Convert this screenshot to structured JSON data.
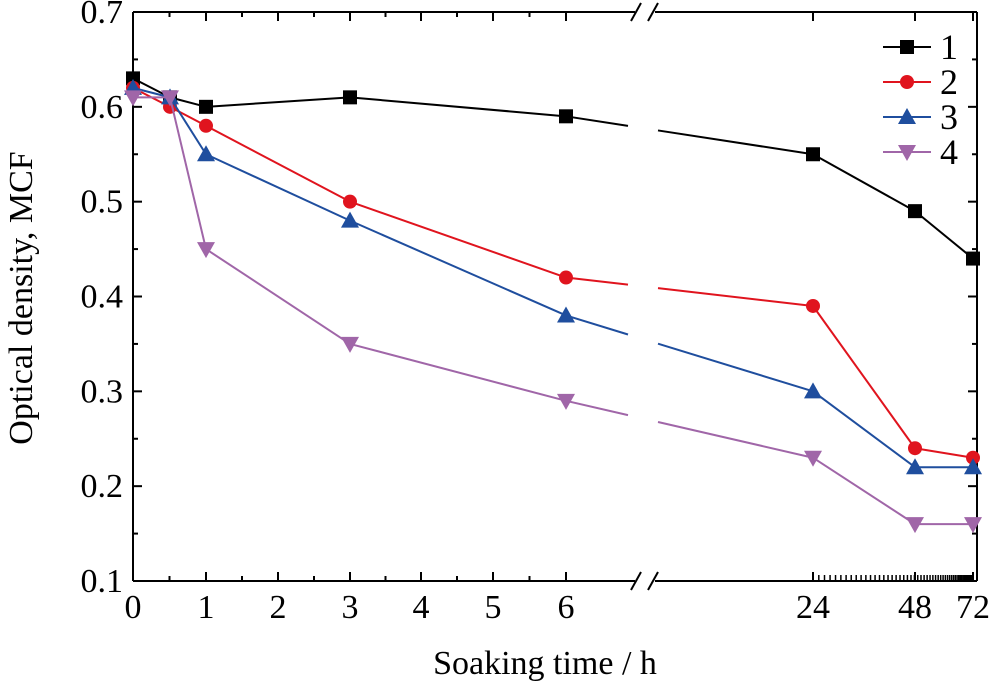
{
  "chart_data": {
    "type": "line",
    "xlabel": "Soaking time / h",
    "ylabel": "Optical density, MCF",
    "ylim": [
      0.1,
      0.7
    ],
    "x_axis_break": "between 6 and 24",
    "legend_position": "top-right",
    "grid": false,
    "y_ticks": [
      "0.1",
      "0.2",
      "0.3",
      "0.4",
      "0.5",
      "0.6",
      "0.7"
    ],
    "x_ticks": [
      "0",
      "1",
      "2",
      "3",
      "4",
      "5",
      "6",
      "24",
      "48",
      "72"
    ],
    "x": [
      0,
      0.5,
      1,
      3,
      6,
      24,
      48,
      72
    ],
    "series": [
      {
        "name": "1",
        "color": "#000000",
        "marker": "square",
        "values": [
          0.63,
          0.61,
          0.6,
          0.61,
          0.59,
          0.55,
          0.49,
          0.44
        ]
      },
      {
        "name": "2",
        "color": "#e0141e",
        "marker": "circle",
        "values": [
          0.62,
          0.6,
          0.58,
          0.5,
          0.42,
          0.39,
          0.24,
          0.23
        ]
      },
      {
        "name": "3",
        "color": "#1f4e9e",
        "marker": "triangle-up",
        "values": [
          0.62,
          0.61,
          0.55,
          0.48,
          0.38,
          0.3,
          0.22,
          0.22
        ]
      },
      {
        "name": "4",
        "color": "#a066a8",
        "marker": "triangle-down",
        "values": [
          0.61,
          0.61,
          0.45,
          0.35,
          0.29,
          0.23,
          0.16,
          0.16
        ]
      }
    ]
  }
}
